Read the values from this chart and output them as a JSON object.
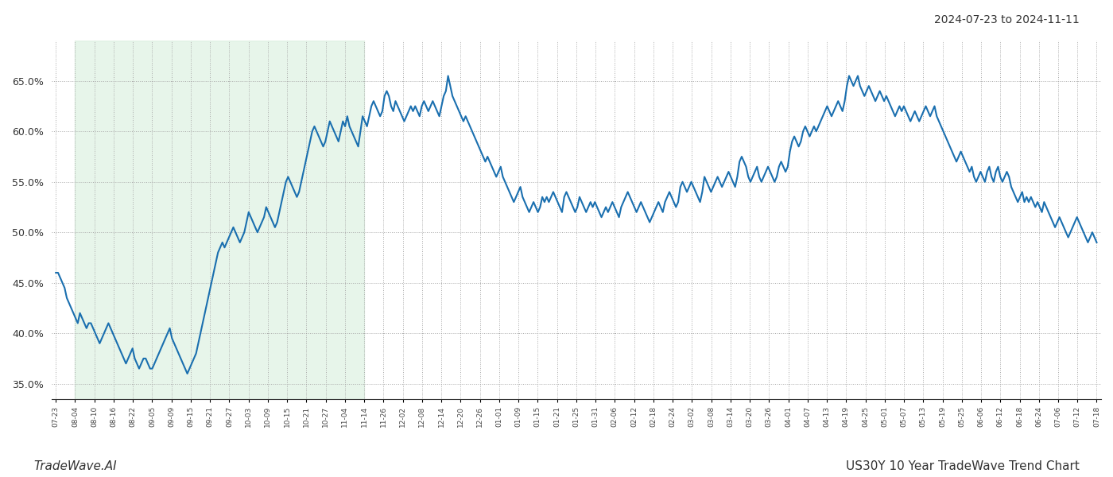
{
  "title_top_right": "2024-07-23 to 2024-11-11",
  "bottom_left_text": "TradeWave.AI",
  "bottom_right_text": "US30Y 10 Year TradeWave Trend Chart",
  "line_color": "#1a6faf",
  "line_width": 1.5,
  "shading_color": "#d4edda",
  "shading_alpha": 0.55,
  "background_color": "#ffffff",
  "grid_color": "#aaaaaa",
  "grid_style": ":",
  "ylim": [
    33.5,
    69.0
  ],
  "yticks": [
    35.0,
    40.0,
    45.0,
    50.0,
    55.0,
    60.0,
    65.0
  ],
  "x_labels": [
    "07-23",
    "08-04",
    "08-10",
    "08-16",
    "08-22",
    "09-05",
    "09-09",
    "09-15",
    "09-21",
    "09-27",
    "10-03",
    "10-09",
    "10-15",
    "10-21",
    "10-27",
    "11-04",
    "11-14",
    "11-26",
    "12-02",
    "12-08",
    "12-14",
    "12-20",
    "12-26",
    "01-01",
    "01-09",
    "01-15",
    "01-21",
    "01-25",
    "01-31",
    "02-06",
    "02-12",
    "02-18",
    "02-24",
    "03-02",
    "03-08",
    "03-14",
    "03-20",
    "03-26",
    "04-01",
    "04-07",
    "04-13",
    "04-19",
    "04-25",
    "05-01",
    "05-07",
    "05-13",
    "05-19",
    "05-25",
    "06-06",
    "06-12",
    "06-18",
    "06-24",
    "07-06",
    "07-12",
    "07-18"
  ],
  "shading_start_label": "08-04",
  "shading_end_label": "11-14",
  "values": [
    46.0,
    46.0,
    45.5,
    45.0,
    44.5,
    43.5,
    43.0,
    42.5,
    42.0,
    41.5,
    41.0,
    42.0,
    41.5,
    41.0,
    40.5,
    41.0,
    41.0,
    40.5,
    40.0,
    39.5,
    39.0,
    39.5,
    40.0,
    40.5,
    41.0,
    40.5,
    40.0,
    39.5,
    39.0,
    38.5,
    38.0,
    37.5,
    37.0,
    37.5,
    38.0,
    38.5,
    37.5,
    37.0,
    36.5,
    37.0,
    37.5,
    37.5,
    37.0,
    36.5,
    36.5,
    37.0,
    37.5,
    38.0,
    38.5,
    39.0,
    39.5,
    40.0,
    40.5,
    39.5,
    39.0,
    38.5,
    38.0,
    37.5,
    37.0,
    36.5,
    36.0,
    36.5,
    37.0,
    37.5,
    38.0,
    39.0,
    40.0,
    41.0,
    42.0,
    43.0,
    44.0,
    45.0,
    46.0,
    47.0,
    48.0,
    48.5,
    49.0,
    48.5,
    49.0,
    49.5,
    50.0,
    50.5,
    50.0,
    49.5,
    49.0,
    49.5,
    50.0,
    51.0,
    52.0,
    51.5,
    51.0,
    50.5,
    50.0,
    50.5,
    51.0,
    51.5,
    52.5,
    52.0,
    51.5,
    51.0,
    50.5,
    51.0,
    52.0,
    53.0,
    54.0,
    55.0,
    55.5,
    55.0,
    54.5,
    54.0,
    53.5,
    54.0,
    55.0,
    56.0,
    57.0,
    58.0,
    59.0,
    60.0,
    60.5,
    60.0,
    59.5,
    59.0,
    58.5,
    59.0,
    60.0,
    61.0,
    60.5,
    60.0,
    59.5,
    59.0,
    60.0,
    61.0,
    60.5,
    61.5,
    60.5,
    60.0,
    59.5,
    59.0,
    58.5,
    60.0,
    61.5,
    61.0,
    60.5,
    61.5,
    62.5,
    63.0,
    62.5,
    62.0,
    61.5,
    62.0,
    63.5,
    64.0,
    63.5,
    62.5,
    62.0,
    63.0,
    62.5,
    62.0,
    61.5,
    61.0,
    61.5,
    62.0,
    62.5,
    62.0,
    62.5,
    62.0,
    61.5,
    62.5,
    63.0,
    62.5,
    62.0,
    62.5,
    63.0,
    62.5,
    62.0,
    61.5,
    62.5,
    63.5,
    64.0,
    65.5,
    64.5,
    63.5,
    63.0,
    62.5,
    62.0,
    61.5,
    61.0,
    61.5,
    61.0,
    60.5,
    60.0,
    59.5,
    59.0,
    58.5,
    58.0,
    57.5,
    57.0,
    57.5,
    57.0,
    56.5,
    56.0,
    55.5,
    56.0,
    56.5,
    55.5,
    55.0,
    54.5,
    54.0,
    53.5,
    53.0,
    53.5,
    54.0,
    54.5,
    53.5,
    53.0,
    52.5,
    52.0,
    52.5,
    53.0,
    52.5,
    52.0,
    52.5,
    53.5,
    53.0,
    53.5,
    53.0,
    53.5,
    54.0,
    53.5,
    53.0,
    52.5,
    52.0,
    53.5,
    54.0,
    53.5,
    53.0,
    52.5,
    52.0,
    52.5,
    53.5,
    53.0,
    52.5,
    52.0,
    52.5,
    53.0,
    52.5,
    53.0,
    52.5,
    52.0,
    51.5,
    52.0,
    52.5,
    52.0,
    52.5,
    53.0,
    52.5,
    52.0,
    51.5,
    52.5,
    53.0,
    53.5,
    54.0,
    53.5,
    53.0,
    52.5,
    52.0,
    52.5,
    53.0,
    52.5,
    52.0,
    51.5,
    51.0,
    51.5,
    52.0,
    52.5,
    53.0,
    52.5,
    52.0,
    53.0,
    53.5,
    54.0,
    53.5,
    53.0,
    52.5,
    53.0,
    54.5,
    55.0,
    54.5,
    54.0,
    54.5,
    55.0,
    54.5,
    54.0,
    53.5,
    53.0,
    54.0,
    55.5,
    55.0,
    54.5,
    54.0,
    54.5,
    55.0,
    55.5,
    55.0,
    54.5,
    55.0,
    55.5,
    56.0,
    55.5,
    55.0,
    54.5,
    55.5,
    57.0,
    57.5,
    57.0,
    56.5,
    55.5,
    55.0,
    55.5,
    56.0,
    56.5,
    55.5,
    55.0,
    55.5,
    56.0,
    56.5,
    56.0,
    55.5,
    55.0,
    55.5,
    56.5,
    57.0,
    56.5,
    56.0,
    56.5,
    58.0,
    59.0,
    59.5,
    59.0,
    58.5,
    59.0,
    60.0,
    60.5,
    60.0,
    59.5,
    60.0,
    60.5,
    60.0,
    60.5,
    61.0,
    61.5,
    62.0,
    62.5,
    62.0,
    61.5,
    62.0,
    62.5,
    63.0,
    62.5,
    62.0,
    63.0,
    64.5,
    65.5,
    65.0,
    64.5,
    65.0,
    65.5,
    64.5,
    64.0,
    63.5,
    64.0,
    64.5,
    64.0,
    63.5,
    63.0,
    63.5,
    64.0,
    63.5,
    63.0,
    63.5,
    63.0,
    62.5,
    62.0,
    61.5,
    62.0,
    62.5,
    62.0,
    62.5,
    62.0,
    61.5,
    61.0,
    61.5,
    62.0,
    61.5,
    61.0,
    61.5,
    62.0,
    62.5,
    62.0,
    61.5,
    62.0,
    62.5,
    61.5,
    61.0,
    60.5,
    60.0,
    59.5,
    59.0,
    58.5,
    58.0,
    57.5,
    57.0,
    57.5,
    58.0,
    57.5,
    57.0,
    56.5,
    56.0,
    56.5,
    55.5,
    55.0,
    55.5,
    56.0,
    55.5,
    55.0,
    56.0,
    56.5,
    55.5,
    55.0,
    56.0,
    56.5,
    55.5,
    55.0,
    55.5,
    56.0,
    55.5,
    54.5,
    54.0,
    53.5,
    53.0,
    53.5,
    54.0,
    53.0,
    53.5,
    53.0,
    53.5,
    53.0,
    52.5,
    53.0,
    52.5,
    52.0,
    53.0,
    52.5,
    52.0,
    51.5,
    51.0,
    50.5,
    51.0,
    51.5,
    51.0,
    50.5,
    50.0,
    49.5,
    50.0,
    50.5,
    51.0,
    51.5,
    51.0,
    50.5,
    50.0,
    49.5,
    49.0,
    49.5,
    50.0,
    49.5,
    49.0
  ]
}
